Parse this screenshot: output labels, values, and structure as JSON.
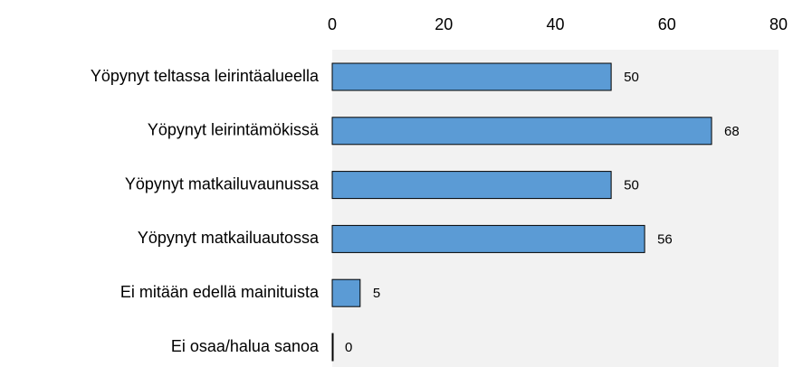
{
  "chart_data": {
    "type": "hbar",
    "categories": [
      "Yöpynyt teltassa leirintäalueella",
      "Yöpynyt leirintämökissä",
      "Yöpynyt matkailuvaunussa",
      "Yöpynyt matkailuautossa",
      "Ei mitään edellä mainituista",
      "Ei osaa/halua sanoa"
    ],
    "values": [
      50,
      68,
      50,
      56,
      5,
      0
    ],
    "color": "#5b9bd5",
    "xlim": [
      0,
      80
    ],
    "xticks": [
      0,
      20,
      40,
      60,
      80
    ],
    "grid": false
  }
}
